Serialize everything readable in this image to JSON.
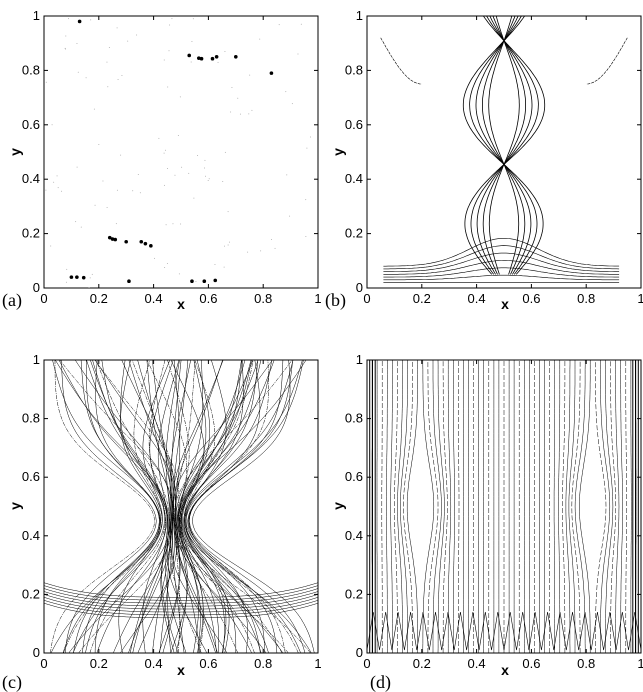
{
  "figure": {
    "panels": [
      {
        "id": "a",
        "label": "(a)",
        "xlabel": "x",
        "ylabel": "y",
        "kind": "points"
      },
      {
        "id": "b",
        "label": "(b)",
        "xlabel": "x",
        "ylabel": "y",
        "kind": "sparse-curves"
      },
      {
        "id": "c",
        "label": "(c)",
        "xlabel": "x",
        "ylabel": "y",
        "kind": "dense-crossing-curves"
      },
      {
        "id": "d",
        "label": "(d)",
        "xlabel": "x",
        "ylabel": "y",
        "kind": "dense-vertical-curves"
      }
    ]
  },
  "chart_data": [
    {
      "type": "scatter",
      "panel": "(a)",
      "xlabel": "x",
      "ylabel": "y",
      "xlim": [
        0,
        1
      ],
      "ylim": [
        0,
        1
      ],
      "x_ticks": [
        "0",
        "0.2",
        "0.4",
        "0.6",
        "0.8",
        "1"
      ],
      "y_ticks": [
        "0",
        "0.2",
        "0.4",
        "0.6",
        "0.8",
        "1"
      ],
      "grid": false,
      "points": [
        [
          0.13,
          0.98
        ],
        [
          0.53,
          0.855
        ],
        [
          0.565,
          0.845
        ],
        [
          0.575,
          0.843
        ],
        [
          0.615,
          0.843
        ],
        [
          0.63,
          0.85
        ],
        [
          0.7,
          0.85
        ],
        [
          0.83,
          0.79
        ],
        [
          0.24,
          0.185
        ],
        [
          0.25,
          0.18
        ],
        [
          0.26,
          0.178
        ],
        [
          0.3,
          0.17
        ],
        [
          0.355,
          0.17
        ],
        [
          0.37,
          0.163
        ],
        [
          0.39,
          0.155
        ],
        [
          0.1,
          0.04
        ],
        [
          0.12,
          0.04
        ],
        [
          0.145,
          0.038
        ],
        [
          0.31,
          0.025
        ],
        [
          0.54,
          0.025
        ],
        [
          0.585,
          0.025
        ],
        [
          0.625,
          0.028
        ]
      ]
    },
    {
      "type": "line",
      "panel": "(b)",
      "xlabel": "x",
      "ylabel": "y",
      "xlim": [
        0,
        1
      ],
      "ylim": [
        0,
        1
      ],
      "x_ticks": [
        "0",
        "0.2",
        "0.4",
        "0.6",
        "0.8",
        "1"
      ],
      "y_ticks": [
        "0",
        "0.2",
        "0.4",
        "0.6",
        "0.8",
        "1"
      ],
      "grid": false
    },
    {
      "type": "line",
      "panel": "(c)",
      "xlabel": "x",
      "ylabel": "y",
      "xlim": [
        0,
        1
      ],
      "ylim": [
        0,
        1
      ],
      "x_ticks": [
        "0",
        "0.2",
        "0.4",
        "0.6",
        "0.8",
        "1"
      ],
      "y_ticks": [
        "0",
        "0.2",
        "0.4",
        "0.6",
        "0.8",
        "1"
      ],
      "grid": false
    },
    {
      "type": "line",
      "panel": "(d)",
      "xlabel": "x",
      "ylabel": "y",
      "xlim": [
        0,
        1
      ],
      "ylim": [
        0,
        1
      ],
      "x_ticks": [
        "0",
        "0.2",
        "0.4",
        "0.6",
        "0.8",
        "1"
      ],
      "y_ticks": [
        "0",
        "0.2",
        "0.4",
        "0.6",
        "0.8",
        "1"
      ],
      "grid": false
    }
  ]
}
